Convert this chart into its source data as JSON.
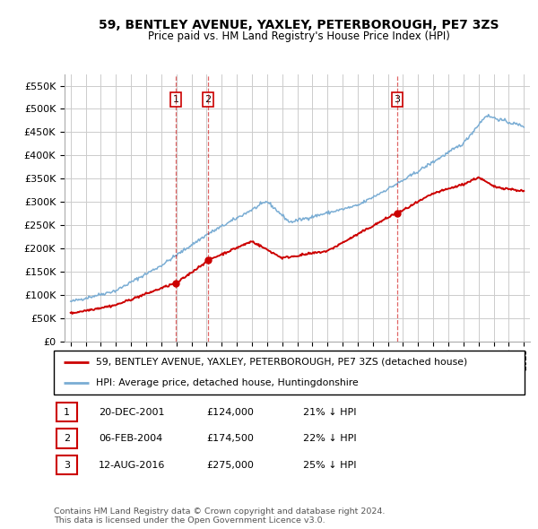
{
  "title": "59, BENTLEY AVENUE, YAXLEY, PETERBOROUGH, PE7 3ZS",
  "subtitle": "Price paid vs. HM Land Registry's House Price Index (HPI)",
  "legend_label_red": "59, BENTLEY AVENUE, YAXLEY, PETERBOROUGH, PE7 3ZS (detached house)",
  "legend_label_blue": "HPI: Average price, detached house, Huntingdonshire",
  "sales": [
    {
      "label": "1",
      "date_str": "20-DEC-2001",
      "price": 124000,
      "pct": "21% ↓ HPI",
      "year": 2001.97
    },
    {
      "label": "2",
      "date_str": "06-FEB-2004",
      "price": 174500,
      "pct": "22% ↓ HPI",
      "year": 2004.1
    },
    {
      "label": "3",
      "date_str": "12-AUG-2016",
      "price": 275000,
      "pct": "25% ↓ HPI",
      "year": 2016.62
    }
  ],
  "ylim": [
    0,
    575000
  ],
  "yticks": [
    0,
    50000,
    100000,
    150000,
    200000,
    250000,
    300000,
    350000,
    400000,
    450000,
    500000,
    550000
  ],
  "xlim_start": 1994.6,
  "xlim_end": 2025.4,
  "red_color": "#cc0000",
  "blue_color": "#7aadd4",
  "grid_color": "#cccccc",
  "footer_line1": "Contains HM Land Registry data © Crown copyright and database right 2024.",
  "footer_line2": "This data is licensed under the Open Government Licence v3.0."
}
